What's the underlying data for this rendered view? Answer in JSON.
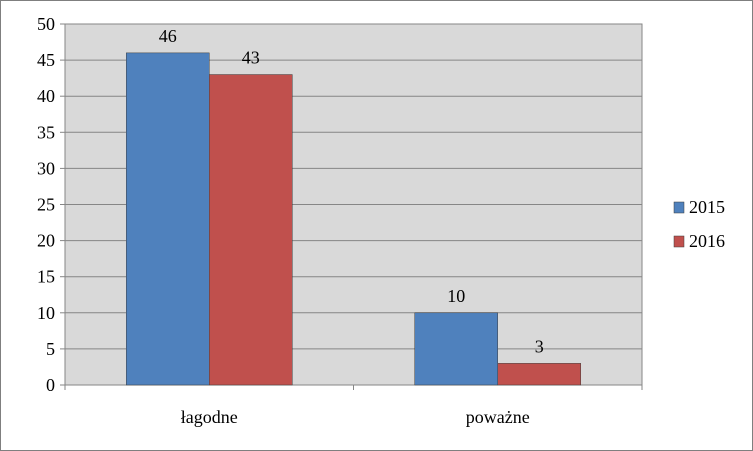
{
  "chart_data": {
    "type": "bar",
    "categories": [
      "łagodne",
      "poważne"
    ],
    "series": [
      {
        "name": "2015",
        "values": [
          46,
          10
        ],
        "color": "#4f81bd"
      },
      {
        "name": "2016",
        "values": [
          43,
          3
        ],
        "color": "#c0504d"
      }
    ],
    "title": "",
    "xlabel": "",
    "ylabel": "",
    "ylim": [
      0,
      50
    ],
    "yticks": [
      0,
      5,
      10,
      15,
      20,
      25,
      30,
      35,
      40,
      45,
      50
    ],
    "grid": true,
    "legend": "right",
    "data_labels": true,
    "plot_background": "#d9d9d9"
  }
}
